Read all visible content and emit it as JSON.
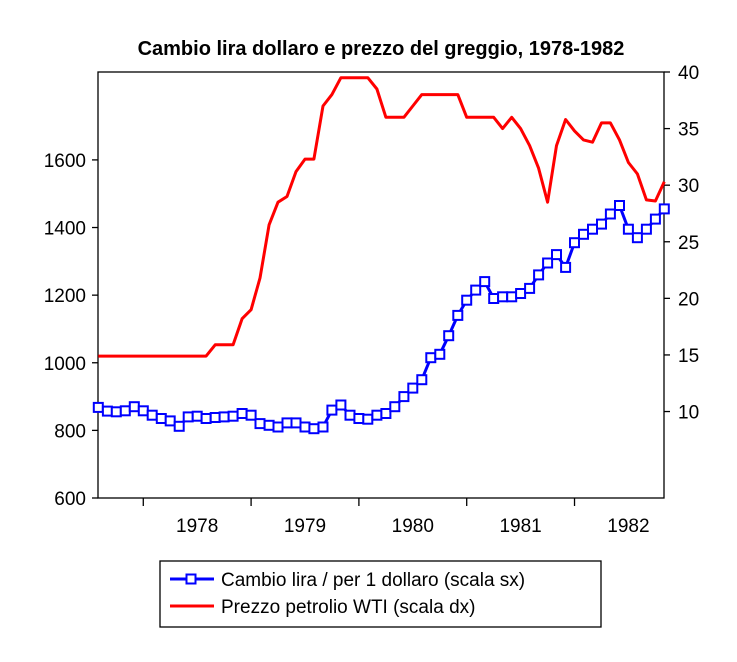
{
  "chart_data": {
    "type": "line",
    "title": "Cambio lira dollaro e prezzo del greggio, 1978-1982",
    "x_tick_labels": [
      "1978",
      "1979",
      "1980",
      "1981",
      "1982"
    ],
    "xlim": [
      1977.58,
      1982.83
    ],
    "y_left": {
      "ticks": [
        600,
        800,
        1000,
        1200,
        1400,
        1600
      ],
      "ylim": [
        600,
        1860
      ]
    },
    "y_right": {
      "ticks": [
        10,
        15,
        20,
        25,
        30,
        35,
        40
      ],
      "ylim": [
        2.36,
        40
      ]
    },
    "legend_position": "bottom",
    "grid": false,
    "series": [
      {
        "name": "Cambio lira / per 1 dollaro (scala sx)",
        "axis": "left",
        "color": "#0000ff",
        "marker": "square",
        "x": [
          1977.583,
          1977.667,
          1977.75,
          1977.833,
          1977.917,
          1978.0,
          1978.083,
          1978.167,
          1978.25,
          1978.333,
          1978.417,
          1978.5,
          1978.583,
          1978.667,
          1978.75,
          1978.833,
          1978.917,
          1979.0,
          1979.083,
          1979.167,
          1979.25,
          1979.333,
          1979.417,
          1979.5,
          1979.583,
          1979.667,
          1979.75,
          1979.833,
          1979.917,
          1980.0,
          1980.083,
          1980.167,
          1980.25,
          1980.333,
          1980.417,
          1980.5,
          1980.583,
          1980.667,
          1980.75,
          1980.833,
          1980.917,
          1981.0,
          1981.083,
          1981.167,
          1981.25,
          1981.333,
          1981.417,
          1981.5,
          1981.583,
          1981.667,
          1981.75,
          1981.833,
          1981.917,
          1982.0,
          1982.083,
          1982.167,
          1982.25,
          1982.333,
          1982.417,
          1982.5,
          1982.583,
          1982.667,
          1982.75,
          1982.833
        ],
        "y": [
          868,
          857,
          855,
          858,
          870,
          858,
          845,
          835,
          828,
          812,
          840,
          842,
          835,
          838,
          840,
          842,
          850,
          845,
          820,
          815,
          810,
          822,
          822,
          810,
          805,
          810,
          860,
          875,
          845,
          835,
          833,
          845,
          850,
          870,
          900,
          925,
          950,
          1015,
          1025,
          1080,
          1140,
          1185,
          1215,
          1240,
          1190,
          1195,
          1195,
          1205,
          1220,
          1260,
          1295,
          1320,
          1282,
          1355,
          1380,
          1395,
          1410,
          1440,
          1465,
          1395,
          1370,
          1395,
          1425,
          1455
        ]
      },
      {
        "name": "Prezzo petrolio WTI (scala dx)",
        "axis": "right",
        "color": "#ff0000",
        "x": [
          1977.583,
          1977.667,
          1977.75,
          1977.833,
          1977.917,
          1978.0,
          1978.083,
          1978.167,
          1978.25,
          1978.333,
          1978.417,
          1978.5,
          1978.583,
          1978.667,
          1978.75,
          1978.833,
          1978.917,
          1979.0,
          1979.083,
          1979.167,
          1979.25,
          1979.333,
          1979.417,
          1979.5,
          1979.583,
          1979.667,
          1979.75,
          1979.833,
          1979.917,
          1980.0,
          1980.083,
          1980.167,
          1980.25,
          1980.333,
          1980.417,
          1980.5,
          1980.583,
          1980.667,
          1980.75,
          1980.833,
          1980.917,
          1981.0,
          1981.083,
          1981.167,
          1981.25,
          1981.333,
          1981.417,
          1981.5,
          1981.583,
          1981.667,
          1981.75,
          1981.833,
          1981.917,
          1982.0,
          1982.083,
          1982.167,
          1982.25,
          1982.333,
          1982.417,
          1982.5,
          1982.583,
          1982.667,
          1982.75,
          1982.833
        ],
        "y": [
          14.9,
          14.9,
          14.9,
          14.9,
          14.9,
          14.9,
          14.9,
          14.9,
          14.9,
          14.9,
          14.9,
          14.9,
          14.9,
          15.9,
          15.9,
          15.9,
          18.2,
          19.0,
          21.8,
          26.5,
          28.5,
          29.0,
          31.2,
          32.3,
          32.3,
          37.0,
          38.0,
          39.5,
          39.5,
          39.5,
          39.5,
          38.5,
          36.0,
          36.0,
          36.0,
          37.0,
          38.0,
          38.0,
          38.0,
          38.0,
          38.0,
          36.0,
          36.0,
          36.0,
          36.0,
          35.0,
          36.0,
          35.0,
          33.5,
          31.5,
          28.5,
          33.5,
          35.8,
          34.8,
          34.0,
          33.8,
          35.5,
          35.5,
          34.0,
          32.0,
          31.0,
          28.7,
          28.6,
          30.3
        ]
      }
    ]
  }
}
